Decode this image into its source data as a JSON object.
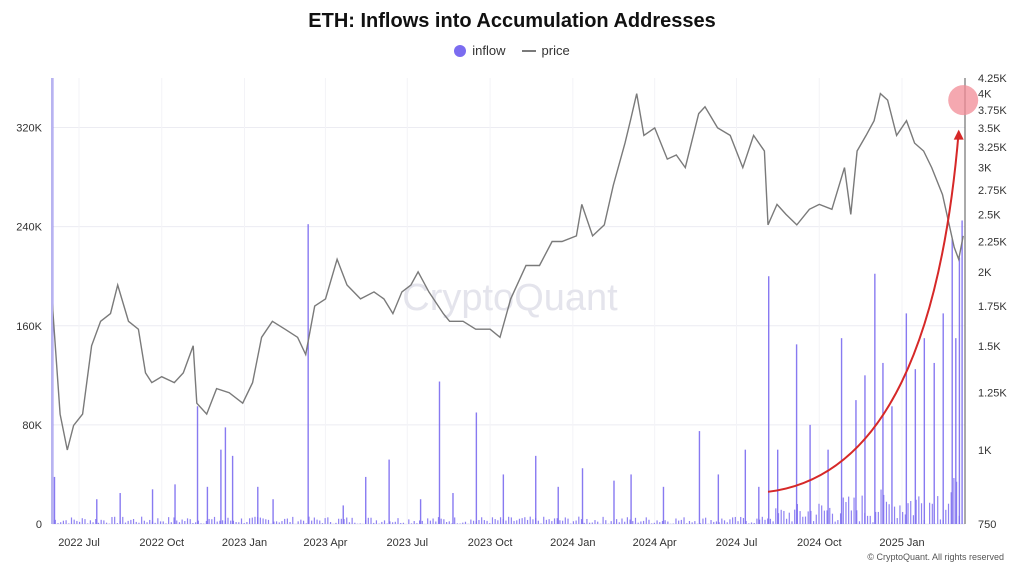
{
  "chart_data": {
    "type": "bar+line",
    "title": "ETH: Inflows into Accumulation Addresses",
    "legend": [
      {
        "name": "inflow",
        "marker": "dot",
        "color": "#7b6cf0"
      },
      {
        "name": "price",
        "marker": "line",
        "color": "#7a7a7a"
      }
    ],
    "legend_position": "top-center",
    "x_tick_labels": [
      "2022 Jul",
      "2022 Oct",
      "2023 Jan",
      "2023 Apr",
      "2023 Jul",
      "2023 Oct",
      "2024 Jan",
      "2024 Apr",
      "2024 Jul",
      "2024 Oct",
      "2025 Jan"
    ],
    "y_left": {
      "ticks": [
        0,
        80000,
        160000,
        240000,
        320000
      ],
      "tick_labels": [
        "0",
        "80K",
        "160K",
        "240K",
        "320K"
      ],
      "ylim": [
        0,
        360000
      ]
    },
    "y_right": {
      "scale": "log",
      "ticks": [
        750,
        1000,
        1250,
        1500,
        1750,
        2000,
        2250,
        2500,
        2750,
        3000,
        3250,
        3500,
        3750,
        4000,
        4250
      ],
      "tick_labels": [
        "750",
        "1K",
        "1.25K",
        "1.5K",
        "1.75K",
        "2K",
        "2.25K",
        "2.5K",
        "2.75K",
        "3K",
        "3.25K",
        "3.5K",
        "3.75K",
        "4K",
        "4.25K"
      ],
      "ylim": [
        750,
        4250
      ]
    },
    "grid": true,
    "watermark": "CryptoQuant",
    "annotation": {
      "type": "curved-arrow",
      "color": "#d62828",
      "from": {
        "x": "2024-08-05",
        "y_price": 850
      },
      "to": {
        "x": "2025-03-05",
        "y_price": 3450
      },
      "highlight_circle": {
        "x": "2025-03-10",
        "y_price": 3900
      }
    },
    "series": [
      {
        "name": "price",
        "type": "line",
        "axis": "right",
        "color": "#7a7a7a",
        "x": [
          "2022-06-01",
          "2022-06-10",
          "2022-06-18",
          "2022-06-25",
          "2022-07-05",
          "2022-07-15",
          "2022-07-25",
          "2022-08-05",
          "2022-08-13",
          "2022-08-25",
          "2022-09-05",
          "2022-09-13",
          "2022-09-20",
          "2022-10-01",
          "2022-10-15",
          "2022-10-25",
          "2022-11-05",
          "2022-11-09",
          "2022-11-20",
          "2022-12-01",
          "2022-12-15",
          "2022-12-30",
          "2023-01-10",
          "2023-01-20",
          "2023-02-01",
          "2023-02-15",
          "2023-03-01",
          "2023-03-10",
          "2023-03-20",
          "2023-04-01",
          "2023-04-14",
          "2023-04-25",
          "2023-05-10",
          "2023-05-25",
          "2023-06-05",
          "2023-06-15",
          "2023-06-25",
          "2023-07-05",
          "2023-07-13",
          "2023-07-25",
          "2023-08-10",
          "2023-08-17",
          "2023-09-01",
          "2023-09-15",
          "2023-10-01",
          "2023-10-12",
          "2023-10-24",
          "2023-11-10",
          "2023-11-25",
          "2023-12-09",
          "2023-12-20",
          "2024-01-05",
          "2024-01-11",
          "2024-01-23",
          "2024-02-05",
          "2024-02-15",
          "2024-02-28",
          "2024-03-05",
          "2024-03-12",
          "2024-03-20",
          "2024-04-01",
          "2024-04-15",
          "2024-04-25",
          "2024-05-05",
          "2024-05-20",
          "2024-05-27",
          "2024-06-10",
          "2024-06-24",
          "2024-07-08",
          "2024-07-20",
          "2024-08-01",
          "2024-08-05",
          "2024-08-15",
          "2024-08-25",
          "2024-09-06",
          "2024-09-20",
          "2024-10-01",
          "2024-10-15",
          "2024-10-29",
          "2024-11-05",
          "2024-11-12",
          "2024-11-22",
          "2024-12-01",
          "2024-12-08",
          "2024-12-16",
          "2024-12-26",
          "2025-01-06",
          "2025-01-15",
          "2025-01-25",
          "2025-02-03",
          "2025-02-15",
          "2025-02-28",
          "2025-03-05",
          "2025-03-10"
        ],
        "y": [
          1800,
          1150,
          1000,
          1100,
          1150,
          1500,
          1650,
          1700,
          1900,
          1650,
          1600,
          1350,
          1300,
          1330,
          1300,
          1350,
          1500,
          1200,
          1150,
          1270,
          1250,
          1200,
          1300,
          1550,
          1650,
          1600,
          1550,
          1450,
          1750,
          1800,
          2100,
          1900,
          1800,
          1850,
          1800,
          1700,
          1850,
          1900,
          2000,
          1850,
          1700,
          1650,
          1650,
          1600,
          1600,
          1550,
          1800,
          2050,
          2050,
          2250,
          2250,
          2300,
          2600,
          2300,
          2400,
          2800,
          3300,
          3600,
          4000,
          3400,
          3500,
          3100,
          3150,
          3000,
          3700,
          3800,
          3500,
          3400,
          3000,
          3400,
          3200,
          2400,
          2600,
          2500,
          2400,
          2550,
          2600,
          2550,
          3000,
          2500,
          3200,
          3400,
          3600,
          4000,
          3900,
          3400,
          3600,
          3300,
          3200,
          3000,
          2700,
          2200,
          2100,
          2300
        ]
      },
      {
        "name": "inflow",
        "type": "bar",
        "axis": "left",
        "color": "#7b6cf0",
        "note": "baseline daily inflows mostly below 10K with notable spikes",
        "spikes": [
          {
            "x": "2022-06-01",
            "y": 364000
          },
          {
            "x": "2022-06-03",
            "y": 38000
          },
          {
            "x": "2022-07-20",
            "y": 20000
          },
          {
            "x": "2022-08-15",
            "y": 25000
          },
          {
            "x": "2022-09-20",
            "y": 28000
          },
          {
            "x": "2022-10-15",
            "y": 32000
          },
          {
            "x": "2022-11-09",
            "y": 95000
          },
          {
            "x": "2022-11-20",
            "y": 30000
          },
          {
            "x": "2022-12-05",
            "y": 60000
          },
          {
            "x": "2022-12-10",
            "y": 78000
          },
          {
            "x": "2022-12-18",
            "y": 55000
          },
          {
            "x": "2023-01-15",
            "y": 30000
          },
          {
            "x": "2023-02-01",
            "y": 20000
          },
          {
            "x": "2023-03-12",
            "y": 242000
          },
          {
            "x": "2023-04-20",
            "y": 15000
          },
          {
            "x": "2023-05-15",
            "y": 38000
          },
          {
            "x": "2023-06-10",
            "y": 52000
          },
          {
            "x": "2023-07-15",
            "y": 20000
          },
          {
            "x": "2023-08-05",
            "y": 115000
          },
          {
            "x": "2023-08-20",
            "y": 25000
          },
          {
            "x": "2023-09-15",
            "y": 90000
          },
          {
            "x": "2023-10-15",
            "y": 40000
          },
          {
            "x": "2023-11-20",
            "y": 55000
          },
          {
            "x": "2023-12-15",
            "y": 30000
          },
          {
            "x": "2024-01-11",
            "y": 45000
          },
          {
            "x": "2024-02-15",
            "y": 35000
          },
          {
            "x": "2024-03-05",
            "y": 40000
          },
          {
            "x": "2024-04-10",
            "y": 30000
          },
          {
            "x": "2024-05-20",
            "y": 75000
          },
          {
            "x": "2024-06-10",
            "y": 40000
          },
          {
            "x": "2024-07-10",
            "y": 60000
          },
          {
            "x": "2024-07-25",
            "y": 30000
          },
          {
            "x": "2024-08-05",
            "y": 200000
          },
          {
            "x": "2024-08-15",
            "y": 60000
          },
          {
            "x": "2024-09-05",
            "y": 145000
          },
          {
            "x": "2024-09-20",
            "y": 80000
          },
          {
            "x": "2024-10-10",
            "y": 60000
          },
          {
            "x": "2024-10-25",
            "y": 150000
          },
          {
            "x": "2024-11-10",
            "y": 100000
          },
          {
            "x": "2024-11-20",
            "y": 120000
          },
          {
            "x": "2024-12-01",
            "y": 202000
          },
          {
            "x": "2024-12-10",
            "y": 130000
          },
          {
            "x": "2024-12-20",
            "y": 95000
          },
          {
            "x": "2025-01-05",
            "y": 170000
          },
          {
            "x": "2025-01-15",
            "y": 125000
          },
          {
            "x": "2025-01-25",
            "y": 150000
          },
          {
            "x": "2025-02-05",
            "y": 130000
          },
          {
            "x": "2025-02-15",
            "y": 170000
          },
          {
            "x": "2025-02-25",
            "y": 230000
          },
          {
            "x": "2025-03-01",
            "y": 150000
          },
          {
            "x": "2025-03-05",
            "y": 215000
          },
          {
            "x": "2025-03-08",
            "y": 245000
          }
        ]
      }
    ]
  },
  "footer": {
    "text": "© CryptoQuant. All rights reserved"
  }
}
